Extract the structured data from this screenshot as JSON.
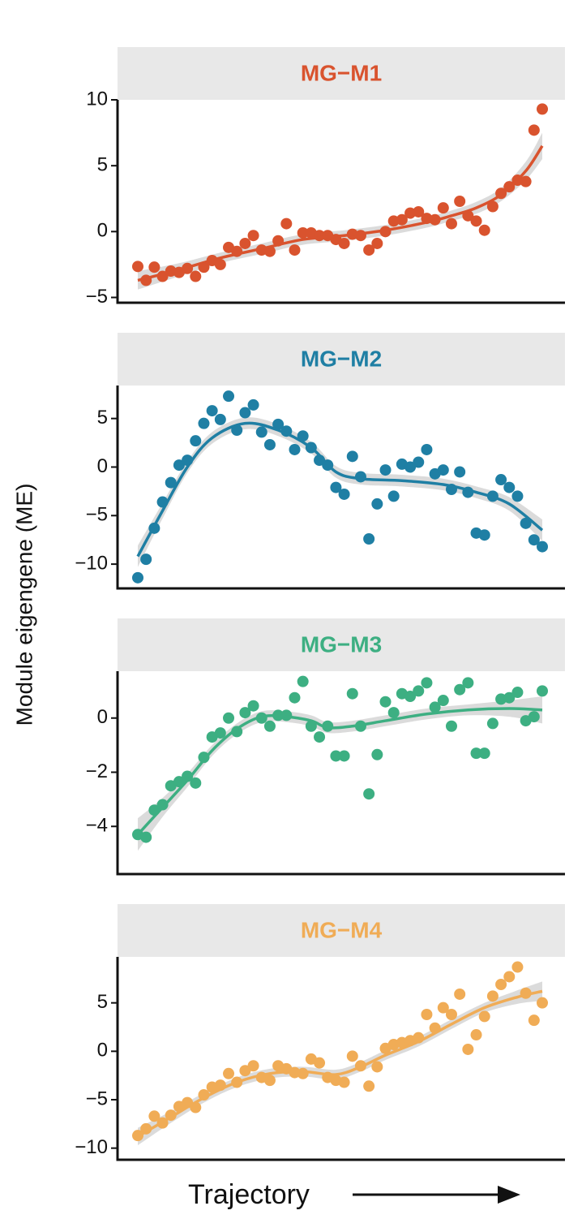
{
  "ylabel": "Module eigengene (ME)",
  "xlabel": "Trajectory",
  "chart_data": [
    {
      "type": "scatter",
      "title": "MG−M1",
      "color": "#d9532e",
      "ylim": [
        -5.4,
        10
      ],
      "yticks": [
        10,
        5,
        0,
        {
          "value": -5,
          "label": "−5"
        }
      ],
      "values": [
        -2.65,
        -3.7,
        -2.7,
        -3.4,
        -3,
        -3.1,
        -2.8,
        -3.4,
        -2.7,
        -2.2,
        -2.5,
        -1.2,
        -1.5,
        -0.9,
        -0.3,
        -1.4,
        -1.5,
        -0.7,
        0.6,
        -1.4,
        -0.1,
        -0.1,
        -0.3,
        -0.3,
        -0.6,
        -0.9,
        -0.2,
        -0.3,
        -1.4,
        -0.9,
        0,
        0.8,
        0.9,
        1.4,
        1.5,
        1,
        0.9,
        1.8,
        0.6,
        2.3,
        1.2,
        0.8,
        0.1,
        1.9,
        2.9,
        3.4,
        3.9,
        3.8,
        7.7,
        9.3
      ],
      "fit": {
        "x": [
          0,
          5,
          10,
          15,
          20,
          25,
          30,
          35,
          38,
          41,
          44,
          47,
          49
        ],
        "values": [
          -3.7,
          -2.9,
          -2.0,
          -1.3,
          -0.6,
          -0.3,
          0.1,
          0.7,
          1.2,
          1.8,
          2.8,
          4.6,
          6.5
        ],
        "se": [
          0.7,
          0.5,
          0.4,
          0.4,
          0.4,
          0.4,
          0.4,
          0.4,
          0.4,
          0.45,
          0.5,
          0.7,
          1.0
        ]
      }
    },
    {
      "type": "scatter",
      "title": "MG−M2",
      "color": "#1f7fa4",
      "ylim": [
        -12.5,
        8.4
      ],
      "yticks": [
        5,
        0,
        {
          "value": -5,
          "label": "−5"
        },
        {
          "value": -10,
          "label": "−10"
        }
      ],
      "values": [
        -11.4,
        -9.5,
        -6.3,
        -3.6,
        -1.6,
        0.2,
        0.7,
        2.7,
        4.5,
        5.8,
        4.9,
        7.3,
        3.8,
        5.6,
        6.4,
        3.6,
        2.3,
        4.4,
        3.7,
        1.8,
        3.2,
        2,
        0.7,
        0.2,
        -2.1,
        -2.8,
        1.1,
        -1,
        -7.4,
        -3.8,
        -0.3,
        -3,
        0.3,
        0,
        0.5,
        1.8,
        -0.7,
        -0.3,
        -2.3,
        -0.5,
        -2.6,
        -6.8,
        -7,
        -3,
        -1.3,
        -2.1,
        -3,
        -5.8,
        -7.5,
        -8.2
      ],
      "fit": {
        "x": [
          0,
          3,
          6,
          9,
          13,
          17,
          21,
          24,
          27,
          32,
          37,
          41,
          45,
          49
        ],
        "values": [
          -9.2,
          -4.5,
          0,
          3,
          4.5,
          3.8,
          2.0,
          -0.5,
          -1.2,
          -1.4,
          -1.8,
          -2.6,
          -3.8,
          -6.5
        ],
        "se": [
          1.1,
          0.8,
          0.6,
          0.6,
          0.6,
          0.6,
          0.6,
          0.6,
          0.6,
          0.6,
          0.6,
          0.6,
          0.7,
          1.1
        ]
      }
    },
    {
      "type": "scatter",
      "title": "MG−M3",
      "color": "#3daf82",
      "ylim": [
        -5.76,
        1.73
      ],
      "yticks": [
        0,
        {
          "value": -2,
          "label": "−2"
        },
        {
          "value": -4,
          "label": "−4"
        }
      ],
      "values": [
        -4.3,
        -4.4,
        -3.4,
        -3.2,
        -2.5,
        -2.35,
        -2.15,
        -2.4,
        -1.45,
        -0.7,
        -0.55,
        0,
        -0.5,
        0.2,
        0.45,
        0,
        -0.3,
        0.1,
        0.1,
        0.75,
        1.35,
        -0.3,
        -0.7,
        -0.3,
        -1.4,
        -1.4,
        0.9,
        -0.3,
        -2.8,
        -1.35,
        0.6,
        0.2,
        0.9,
        0.8,
        1.0,
        1.3,
        0.4,
        0.65,
        -0.3,
        1.05,
        1.3,
        -1.3,
        -1.3,
        -0.2,
        0.7,
        0.75,
        0.95,
        -0.1,
        0.05,
        1.0
      ],
      "fit": {
        "x": [
          0,
          3,
          6,
          9,
          12,
          15,
          18,
          21,
          23,
          26,
          30,
          35,
          40,
          45,
          49
        ],
        "values": [
          -4.3,
          -3.3,
          -2.3,
          -1.2,
          -0.4,
          0.05,
          0.05,
          -0.1,
          -0.35,
          -0.3,
          -0.1,
          0.15,
          0.3,
          0.35,
          0.3
        ],
        "se": [
          0.6,
          0.35,
          0.25,
          0.2,
          0.2,
          0.2,
          0.2,
          0.2,
          0.2,
          0.2,
          0.2,
          0.2,
          0.2,
          0.3,
          0.5
        ]
      }
    },
    {
      "type": "scatter",
      "title": "MG−M4",
      "color": "#f0ac56",
      "ylim": [
        -11.2,
        9.75
      ],
      "yticks": [
        5,
        0,
        {
          "value": -5,
          "label": "−5"
        },
        {
          "value": -10,
          "label": "−10"
        }
      ],
      "values": [
        -8.7,
        -8,
        -6.7,
        -7.4,
        -6.6,
        -5.7,
        -5.3,
        -5.8,
        -4.5,
        -3.7,
        -3.5,
        -2.3,
        -3.2,
        -2,
        -1.5,
        -2.7,
        -3,
        -1.5,
        -1.8,
        -2.2,
        -2.3,
        -0.8,
        -1.2,
        -2.7,
        -3,
        -3.2,
        -0.5,
        -1.5,
        -3.6,
        -1.6,
        0.3,
        0.7,
        0.9,
        1.1,
        1.4,
        3.8,
        2.4,
        4.5,
        3.8,
        5.9,
        0.2,
        1.7,
        3.6,
        5.7,
        6.9,
        7.7,
        8.7,
        6,
        3.2,
        5
      ],
      "fit": {
        "x": [
          0,
          4,
          8,
          12,
          16,
          20,
          24,
          27,
          30,
          34,
          38,
          42,
          46,
          49
        ],
        "values": [
          -8.8,
          -6.8,
          -4.8,
          -3.2,
          -2.3,
          -2.1,
          -2.4,
          -1.6,
          -0.4,
          1,
          2.8,
          4.5,
          5.6,
          6.2
        ],
        "se": [
          0.9,
          0.6,
          0.5,
          0.5,
          0.5,
          0.5,
          0.5,
          0.5,
          0.5,
          0.5,
          0.5,
          0.5,
          0.7,
          1.0
        ]
      }
    }
  ]
}
